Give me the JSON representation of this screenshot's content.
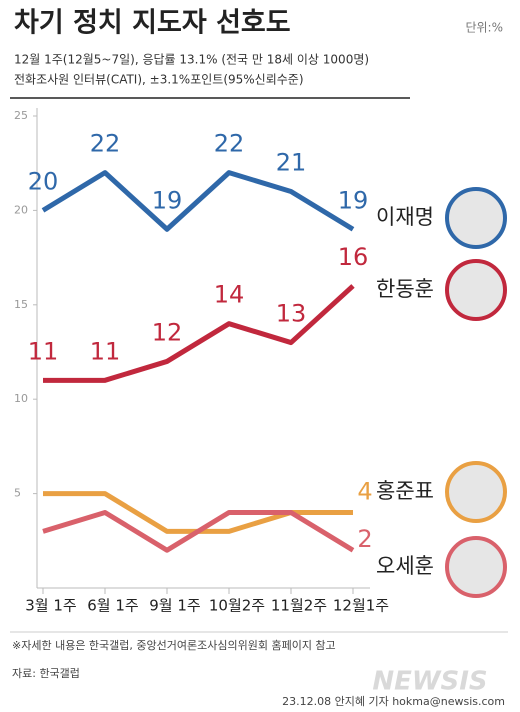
{
  "chart_data": {
    "type": "line",
    "title": "차기 정치 지도자 선호도",
    "unit": "단위:%",
    "subtitle": [
      "12월 1주(12월5~7일), 응답률 13.1% (전국 만 18세 이상 1000명)",
      "전화조사원 인터뷰(CATI), ±3.1%포인트(95%신뢰수준)"
    ],
    "categories": [
      "3월 1주",
      "6월 1주",
      "9월 1주",
      "10월2주",
      "11월2주",
      "12월1주"
    ],
    "series": [
      {
        "name": "이재명",
        "color": "#2f68a9",
        "values": [
          20,
          22,
          19,
          22,
          21,
          19
        ]
      },
      {
        "name": "한동훈",
        "color": "#c1283d",
        "values": [
          11,
          11,
          12,
          14,
          13,
          16
        ]
      },
      {
        "name": "홍준표",
        "color": "#e9a043",
        "values": [
          5,
          5,
          3,
          3,
          4,
          4
        ]
      },
      {
        "name": "오세훈",
        "color": "#d9616b",
        "values": [
          3,
          4,
          2,
          4,
          4,
          2
        ]
      }
    ],
    "ylim": [
      0,
      25
    ],
    "yticks": [
      5,
      10,
      15,
      20,
      25
    ],
    "note": "※자세한 내용은 한국갤럽, 중앙선거여론조사심의위원회 홈페이지 참고",
    "source": "자료: 한국갤럽",
    "credit": "23.12.08 안지혜 기자 hokma@newsis.com",
    "watermark": "NEWSIS"
  }
}
